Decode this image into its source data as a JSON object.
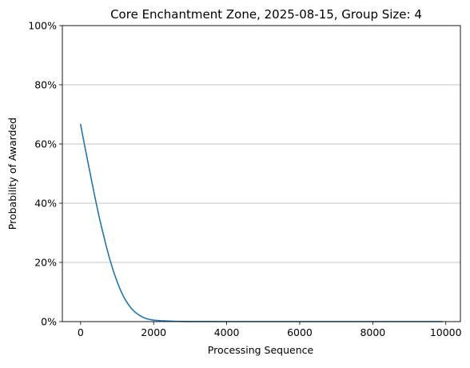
{
  "chart_data": {
    "type": "line",
    "title": "Core Enchantment Zone, 2025-08-15, Group Size: 4",
    "xlabel": "Processing Sequence",
    "ylabel": "Probability of Awarded",
    "xlim": [
      -500,
      10400
    ],
    "ylim": [
      0,
      1
    ],
    "x_ticks": [
      {
        "value": 0,
        "label": "0"
      },
      {
        "value": 2000,
        "label": "2000"
      },
      {
        "value": 4000,
        "label": "4000"
      },
      {
        "value": 6000,
        "label": "6000"
      },
      {
        "value": 8000,
        "label": "8000"
      },
      {
        "value": 10000,
        "label": "10000"
      }
    ],
    "y_ticks": [
      {
        "value": 0,
        "label": "0%"
      },
      {
        "value": 0.2,
        "label": "20%"
      },
      {
        "value": 0.4,
        "label": "40%"
      },
      {
        "value": 0.6,
        "label": "60%"
      },
      {
        "value": 0.8,
        "label": "80%"
      },
      {
        "value": 1.0,
        "label": "100%"
      }
    ],
    "grid": "horizontal",
    "series": [
      {
        "color": "#1f77b4",
        "x": [
          0,
          100,
          200,
          300,
          400,
          500,
          600,
          700,
          800,
          900,
          1000,
          1100,
          1200,
          1300,
          1400,
          1500,
          1600,
          1700,
          1800,
          1900,
          2000,
          2200,
          2400,
          2600,
          2800,
          3000,
          3500,
          4000,
          5000,
          6000,
          7000,
          8000,
          9000,
          9900
        ],
        "y": [
          0.666,
          0.601,
          0.539,
          0.477,
          0.416,
          0.358,
          0.306,
          0.256,
          0.21,
          0.17,
          0.135,
          0.104,
          0.079,
          0.059,
          0.043,
          0.031,
          0.022,
          0.015,
          0.01,
          0.007,
          0.005,
          0.003,
          0.002,
          0.001,
          0.0005,
          0.0003,
          0.0001,
          0,
          0,
          0,
          0,
          0,
          0,
          0
        ]
      }
    ]
  }
}
